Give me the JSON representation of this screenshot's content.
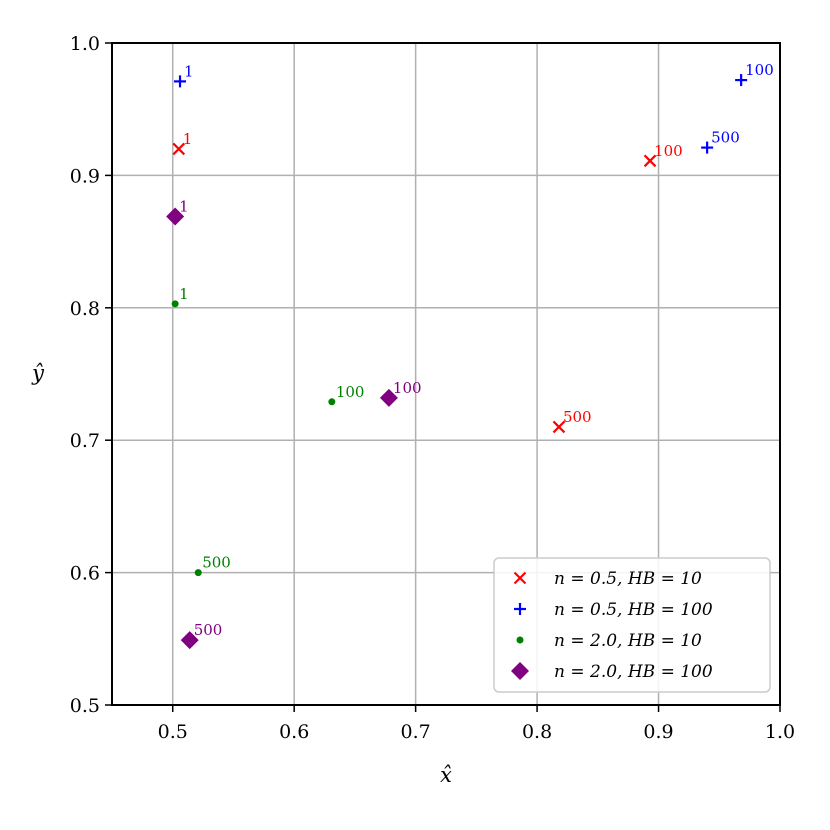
{
  "chart_data": {
    "type": "scatter",
    "title": "",
    "xlabel": "x̂",
    "ylabel": "ŷ",
    "xlim": [
      0.45,
      1.0
    ],
    "ylim": [
      0.5,
      1.0
    ],
    "xticks": [
      0.5,
      0.6,
      0.7,
      0.8,
      0.9,
      1.0
    ],
    "yticks": [
      0.5,
      0.6,
      0.7,
      0.8,
      0.9,
      1.0
    ],
    "xtick_labels": [
      "0.5",
      "0.6",
      "0.7",
      "0.8",
      "0.9",
      "1.0"
    ],
    "ytick_labels": [
      "0.5",
      "0.6",
      "0.7",
      "0.8",
      "0.9",
      "1.0"
    ],
    "grid": true,
    "legend_position": "bottom-right",
    "series": [
      {
        "name": "n = 0.5, HB = 10",
        "marker": "x",
        "color": "#ff0000",
        "points": [
          {
            "x": 0.505,
            "y": 0.92,
            "label": "1"
          },
          {
            "x": 0.893,
            "y": 0.911,
            "label": "100"
          },
          {
            "x": 0.818,
            "y": 0.71,
            "label": "500"
          }
        ]
      },
      {
        "name": "n = 0.5, HB = 100",
        "marker": "plus",
        "color": "#0000ff",
        "points": [
          {
            "x": 0.506,
            "y": 0.971,
            "label": "1"
          },
          {
            "x": 0.968,
            "y": 0.972,
            "label": "100"
          },
          {
            "x": 0.94,
            "y": 0.921,
            "label": "500"
          }
        ]
      },
      {
        "name": "n = 2.0, HB = 10",
        "marker": "dot",
        "color": "#008000",
        "points": [
          {
            "x": 0.502,
            "y": 0.803,
            "label": "1"
          },
          {
            "x": 0.631,
            "y": 0.729,
            "label": "100"
          },
          {
            "x": 0.521,
            "y": 0.6,
            "label": "500"
          }
        ]
      },
      {
        "name": "n = 2.0, HB = 100",
        "marker": "diamond",
        "color": "#800080",
        "points": [
          {
            "x": 0.502,
            "y": 0.869,
            "label": "1"
          },
          {
            "x": 0.678,
            "y": 0.732,
            "label": "100"
          },
          {
            "x": 0.514,
            "y": 0.549,
            "label": "500"
          }
        ]
      }
    ]
  }
}
